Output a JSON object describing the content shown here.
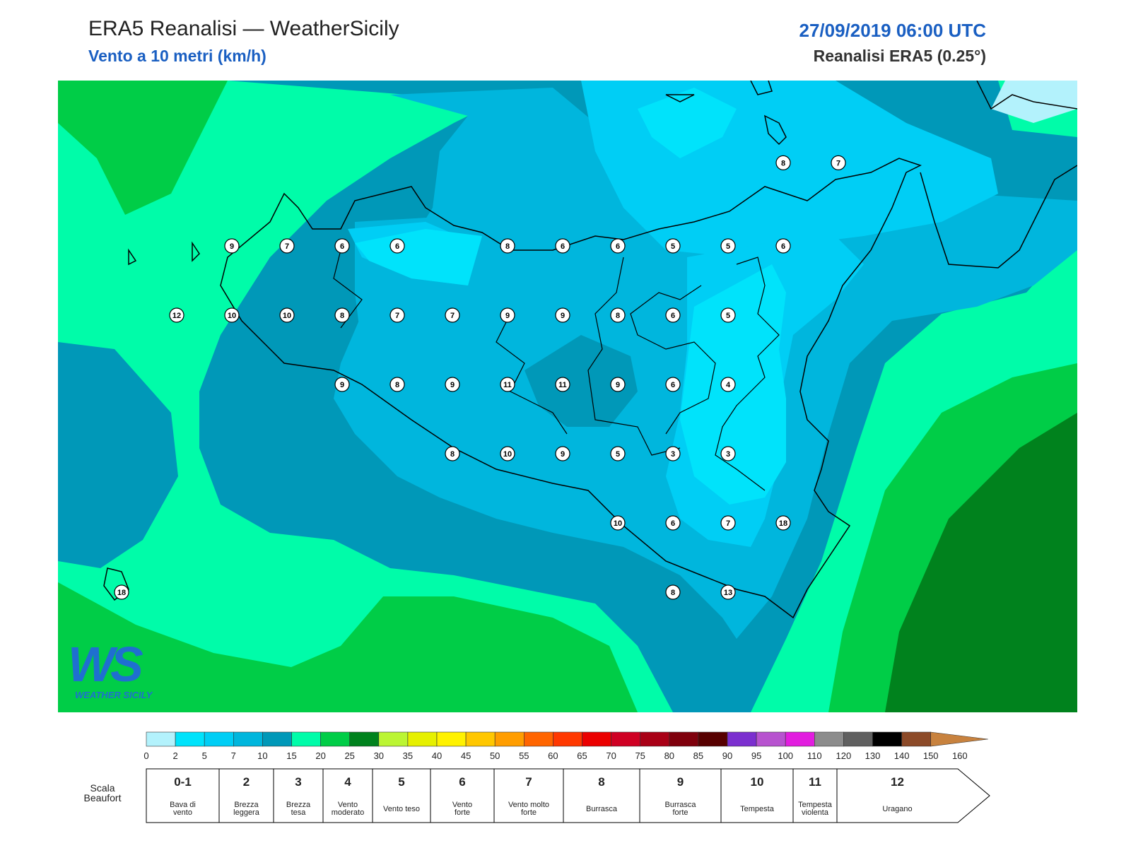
{
  "header": {
    "title": "ERA5 Reanalisi — WeatherSicily",
    "subtitle": "Vento a 10 metri (km/h)",
    "date": "27/09/2019 06:00 UTC",
    "source": "Reanalisi ERA5 (0.25°)"
  },
  "logo": {
    "big": "WS",
    "small": "WEATHER SICILY"
  },
  "colorbar": {
    "ticks": [
      "0",
      "2",
      "5",
      "7",
      "10",
      "15",
      "20",
      "25",
      "30",
      "35",
      "40",
      "45",
      "50",
      "55",
      "60",
      "65",
      "70",
      "75",
      "80",
      "85",
      "90",
      "95",
      "100",
      "110",
      "120",
      "130",
      "140",
      "150",
      "160"
    ],
    "colors": [
      "#b3f2fc",
      "#00e3fb",
      "#00cef5",
      "#00b6dd",
      "#0098b8",
      "#00fca9",
      "#00cd47",
      "#00821d",
      "#bbf533",
      "#e6f000",
      "#fff200",
      "#ffc700",
      "#ff9d00",
      "#ff6500",
      "#ff3800",
      "#eb0000",
      "#cf0023",
      "#a90016",
      "#7f000c",
      "#570000",
      "#7b2fcf",
      "#b753cf",
      "#e21ddf",
      "#8c8c8c",
      "#606060",
      "#000000",
      "#8c4a28",
      "#c8823e"
    ]
  },
  "beaufort": {
    "label_line1": "Scala",
    "label_line2": "Beaufort",
    "levels": [
      {
        "num": "0-1",
        "l1": "Bava di",
        "l2": "vento"
      },
      {
        "num": "2",
        "l1": "Brezza",
        "l2": "leggera"
      },
      {
        "num": "3",
        "l1": "Brezza",
        "l2": "tesa"
      },
      {
        "num": "4",
        "l1": "Vento",
        "l2": "moderato"
      },
      {
        "num": "5",
        "l1": "Vento teso",
        "l2": ""
      },
      {
        "num": "6",
        "l1": "Vento",
        "l2": "forte"
      },
      {
        "num": "7",
        "l1": "Vento molto",
        "l2": "forte"
      },
      {
        "num": "8",
        "l1": "Burrasca",
        "l2": ""
      },
      {
        "num": "9",
        "l1": "Burrasca",
        "l2": "forte"
      },
      {
        "num": "10",
        "l1": "Tempesta",
        "l2": ""
      },
      {
        "num": "11",
        "l1": "Tempesta",
        "l2": "violenta"
      },
      {
        "num": "12",
        "l1": "Uragano",
        "l2": ""
      }
    ]
  },
  "wind_speed_stations": [
    {
      "lon": 12.5,
      "lat": 38.0,
      "v": "9"
    },
    {
      "lon": 13.0,
      "lat": 38.0,
      "v": "7"
    },
    {
      "lon": 13.5,
      "lat": 38.0,
      "v": "6"
    },
    {
      "lon": 14.0,
      "lat": 38.0,
      "v": "6"
    },
    {
      "lon": 15.0,
      "lat": 38.0,
      "v": "8"
    },
    {
      "lon": 15.5,
      "lat": 38.0,
      "v": "6"
    },
    {
      "lon": 16.0,
      "lat": 38.0,
      "v": "6"
    },
    {
      "lon": 16.5,
      "lat": 38.0,
      "v": "5"
    },
    {
      "lon": 17.0,
      "lat": 38.0,
      "v": "5"
    },
    {
      "lon": 17.5,
      "lat": 38.0,
      "v": "6"
    },
    {
      "lon": 17.5,
      "lat": 38.6,
      "v": "8"
    },
    {
      "lon": 18.0,
      "lat": 38.6,
      "v": "7"
    },
    {
      "lon": 12.0,
      "lat": 37.5,
      "v": "12"
    },
    {
      "lon": 12.5,
      "lat": 37.5,
      "v": "10"
    },
    {
      "lon": 13.0,
      "lat": 37.5,
      "v": "10"
    },
    {
      "lon": 13.5,
      "lat": 37.5,
      "v": "8"
    },
    {
      "lon": 14.0,
      "lat": 37.5,
      "v": "7"
    },
    {
      "lon": 14.5,
      "lat": 37.5,
      "v": "7"
    },
    {
      "lon": 15.0,
      "lat": 37.5,
      "v": "9"
    },
    {
      "lon": 15.5,
      "lat": 37.5,
      "v": "9"
    },
    {
      "lon": 16.0,
      "lat": 37.5,
      "v": "8"
    },
    {
      "lon": 16.5,
      "lat": 37.5,
      "v": "6"
    },
    {
      "lon": 17.0,
      "lat": 37.5,
      "v": "5"
    },
    {
      "lon": 13.5,
      "lat": 37.0,
      "v": "9"
    },
    {
      "lon": 14.0,
      "lat": 37.0,
      "v": "8"
    },
    {
      "lon": 14.5,
      "lat": 37.0,
      "v": "9"
    },
    {
      "lon": 15.0,
      "lat": 37.0,
      "v": "11"
    },
    {
      "lon": 15.5,
      "lat": 37.0,
      "v": "11"
    },
    {
      "lon": 16.0,
      "lat": 37.0,
      "v": "9"
    },
    {
      "lon": 16.5,
      "lat": 37.0,
      "v": "6"
    },
    {
      "lon": 17.0,
      "lat": 37.0,
      "v": "4"
    },
    {
      "lon": 14.5,
      "lat": 36.5,
      "v": "8"
    },
    {
      "lon": 15.0,
      "lat": 36.5,
      "v": "10"
    },
    {
      "lon": 15.5,
      "lat": 36.5,
      "v": "9"
    },
    {
      "lon": 16.0,
      "lat": 36.5,
      "v": "5"
    },
    {
      "lon": 16.5,
      "lat": 36.5,
      "v": "3"
    },
    {
      "lon": 17.0,
      "lat": 36.5,
      "v": "3"
    },
    {
      "lon": 16.0,
      "lat": 36.0,
      "v": "10"
    },
    {
      "lon": 16.5,
      "lat": 36.0,
      "v": "6"
    },
    {
      "lon": 17.0,
      "lat": 36.0,
      "v": "7"
    },
    {
      "lon": 17.5,
      "lat": 36.0,
      "v": "18"
    },
    {
      "lon": 11.5,
      "lat": 35.5,
      "v": "18"
    },
    {
      "lon": 16.5,
      "lat": 35.5,
      "v": "8"
    },
    {
      "lon": 17.0,
      "lat": 35.5,
      "v": "13"
    }
  ]
}
